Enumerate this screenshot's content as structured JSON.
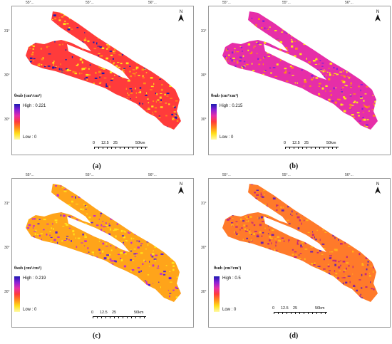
{
  "panels": [
    {
      "id": "a",
      "caption": "(a)",
      "legend": {
        "title": "θsub (cm³/cm³)",
        "high": "High : 0.221",
        "low": "Low : 0"
      },
      "scale": {
        "labels": [
          "0",
          "12.5",
          "25",
          "50km"
        ]
      },
      "north": "N",
      "lon_ticks": [
        "55°...",
        "55°...",
        "56°..."
      ],
      "lat_ticks": [
        "31°",
        "30°",
        "30°"
      ]
    },
    {
      "id": "b",
      "caption": "(b)",
      "legend": {
        "title": "θsub (cm³/cm³)",
        "high": "High : 0.215",
        "low": "Low : 0"
      },
      "scale": {
        "labels": [
          "0",
          "12.5",
          "25",
          "50km"
        ]
      },
      "north": "N",
      "lon_ticks": [
        "55°...",
        "55°...",
        "56°..."
      ],
      "lat_ticks": [
        "31°",
        "30°",
        "30°"
      ]
    },
    {
      "id": "c",
      "caption": "(c)",
      "legend": {
        "title": "θsub (cm³/cm³)",
        "high": "High : 0.219",
        "low": "Low : 0"
      },
      "scale": {
        "labels": [
          "0",
          "12.5",
          "25",
          "50km"
        ]
      },
      "north": "N",
      "lon_ticks": [
        "55°...",
        "55°...",
        "56°..."
      ],
      "lat_ticks": [
        "31°",
        "30°",
        "30°"
      ]
    },
    {
      "id": "d",
      "caption": "(d)",
      "legend": {
        "title": "θsub (cm³/cm³)",
        "high": "High : 0.5",
        "low": "Low : 0"
      },
      "scale": {
        "labels": [
          "0",
          "12.5",
          "25",
          "50km"
        ]
      },
      "north": "N",
      "lon_ticks": [
        "55°...",
        "55°...",
        "56°..."
      ],
      "lat_ticks": [
        "31°",
        "30°",
        "30°"
      ]
    }
  ],
  "colors": {
    "a": {
      "base": "#ff3b3b",
      "mix1": "#ff8c1a",
      "mix2": "#ffe11a",
      "accent": "#1b1bb0"
    },
    "b": {
      "base": "#e62ea8",
      "mix1": "#ffe11a",
      "mix2": "#ff8c1a",
      "accent": "#8a1fd6"
    },
    "c": {
      "base": "#ffa41a",
      "mix1": "#c42ad0",
      "mix2": "#ffe11a",
      "accent": "#5a1fd6"
    },
    "d": {
      "base": "#ff7a2a",
      "mix1": "#c4287a",
      "mix2": "#ffb21a",
      "accent": "#6a1fb0"
    }
  }
}
